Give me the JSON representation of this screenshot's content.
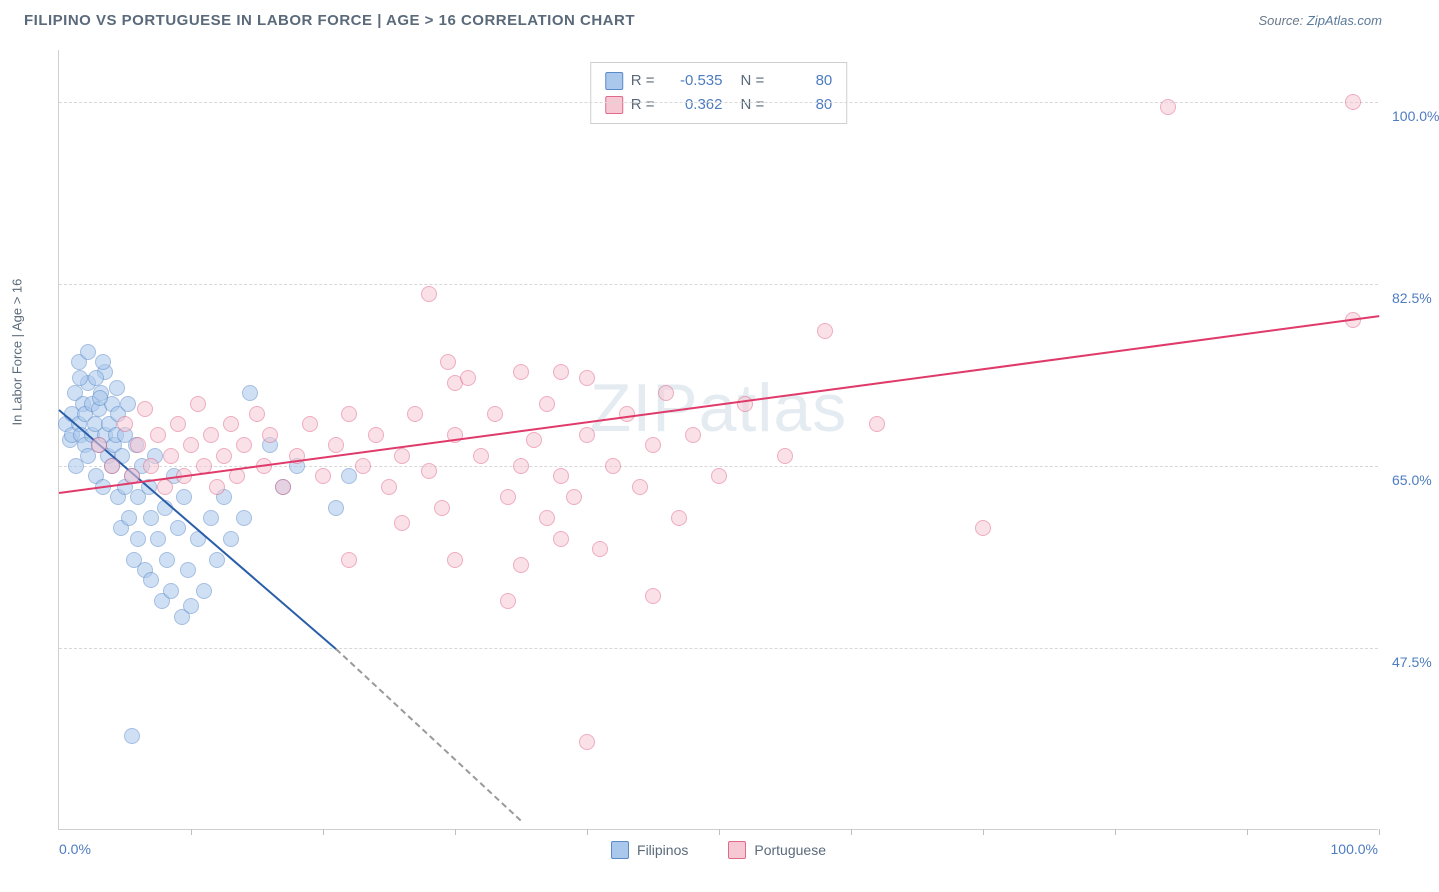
{
  "header": {
    "title": "FILIPINO VS PORTUGUESE IN LABOR FORCE | AGE > 16 CORRELATION CHART",
    "source_prefix": "Source: ",
    "source_link": "ZipAtlas.com"
  },
  "chart": {
    "type": "scatter",
    "xlim": [
      0,
      100
    ],
    "ylim": [
      30,
      105
    ],
    "x_min_label": "0.0%",
    "x_max_label": "100.0%",
    "y_ticks": [
      {
        "value": 47.5,
        "label": "47.5%"
      },
      {
        "value": 65.0,
        "label": "65.0%"
      },
      {
        "value": 82.5,
        "label": "82.5%"
      },
      {
        "value": 100.0,
        "label": "100.0%"
      }
    ],
    "x_tick_positions": [
      10,
      20,
      30,
      40,
      50,
      60,
      70,
      80,
      90,
      100
    ],
    "yaxis_title": "In Labor Force | Age > 16",
    "background_color": "#ffffff",
    "grid_color": "#d8d8d8",
    "axis_color": "#cfcfcf",
    "point_radius": 8,
    "point_opacity": 0.55,
    "watermark": "ZIPatlas",
    "series": [
      {
        "name": "Filipinos",
        "label": "Filipinos",
        "color_fill": "#a9c8ec",
        "color_stroke": "#5b8ac9",
        "r": -0.535,
        "n": 80,
        "trend": {
          "x1": 0,
          "y1": 70.5,
          "x2": 21,
          "y2": 47.5,
          "dashed_x2": 35,
          "dashed_y2": 31.0,
          "color": "#2a5fa8",
          "width": 2
        },
        "points": [
          [
            0.5,
            69
          ],
          [
            0.8,
            67.5
          ],
          [
            1,
            70
          ],
          [
            1,
            68
          ],
          [
            1.2,
            72
          ],
          [
            1.3,
            65
          ],
          [
            1.5,
            75
          ],
          [
            1.5,
            69
          ],
          [
            1.7,
            68
          ],
          [
            1.8,
            71
          ],
          [
            2,
            67
          ],
          [
            2,
            70
          ],
          [
            2.2,
            73
          ],
          [
            2.2,
            66
          ],
          [
            2.5,
            68
          ],
          [
            2.5,
            71
          ],
          [
            2.7,
            69
          ],
          [
            2.8,
            64
          ],
          [
            3,
            70.5
          ],
          [
            3,
            67
          ],
          [
            3.2,
            72
          ],
          [
            3.3,
            63
          ],
          [
            3.5,
            68
          ],
          [
            3.5,
            74
          ],
          [
            3.7,
            66
          ],
          [
            3.8,
            69
          ],
          [
            4,
            71
          ],
          [
            4,
            65
          ],
          [
            4.2,
            67
          ],
          [
            4.3,
            68
          ],
          [
            4.5,
            62
          ],
          [
            4.5,
            70
          ],
          [
            4.7,
            59
          ],
          [
            4.8,
            66
          ],
          [
            5,
            68
          ],
          [
            5,
            63
          ],
          [
            5.2,
            71
          ],
          [
            5.3,
            60
          ],
          [
            5.5,
            64
          ],
          [
            5.7,
            56
          ],
          [
            5.8,
            67
          ],
          [
            6,
            62
          ],
          [
            6,
            58
          ],
          [
            6.3,
            65
          ],
          [
            6.5,
            55
          ],
          [
            6.8,
            63
          ],
          [
            7,
            60
          ],
          [
            7,
            54
          ],
          [
            7.3,
            66
          ],
          [
            7.5,
            58
          ],
          [
            7.8,
            52
          ],
          [
            8,
            61
          ],
          [
            8.2,
            56
          ],
          [
            8.5,
            53
          ],
          [
            8.7,
            64
          ],
          [
            9,
            59
          ],
          [
            9.3,
            50.5
          ],
          [
            9.5,
            62
          ],
          [
            9.8,
            55
          ],
          [
            10,
            51.5
          ],
          [
            10.5,
            58
          ],
          [
            11,
            53
          ],
          [
            11.5,
            60
          ],
          [
            12,
            56
          ],
          [
            12.5,
            62
          ],
          [
            13,
            58
          ],
          [
            14,
            60
          ],
          [
            14.5,
            72
          ],
          [
            16,
            67
          ],
          [
            17,
            63
          ],
          [
            18,
            65
          ],
          [
            5.5,
            39
          ],
          [
            21,
            61
          ],
          [
            22,
            64
          ],
          [
            2.2,
            76
          ],
          [
            2.8,
            73.5
          ],
          [
            3.3,
            75
          ],
          [
            1.6,
            73.5
          ],
          [
            4.4,
            72.5
          ],
          [
            3.1,
            71.5
          ]
        ]
      },
      {
        "name": "Portuguese",
        "label": "Portuguese",
        "color_fill": "#f6c8d4",
        "color_stroke": "#e06a8c",
        "r": 0.362,
        "n": 80,
        "trend": {
          "x1": 0,
          "y1": 62.5,
          "x2": 100,
          "y2": 79.5,
          "color": "#e03a6a",
          "width": 2
        },
        "points": [
          [
            3,
            67
          ],
          [
            4,
            65
          ],
          [
            5,
            69
          ],
          [
            5.5,
            64
          ],
          [
            6,
            67
          ],
          [
            6.5,
            70.5
          ],
          [
            7,
            65
          ],
          [
            7.5,
            68
          ],
          [
            8,
            63
          ],
          [
            8.5,
            66
          ],
          [
            9,
            69
          ],
          [
            9.5,
            64
          ],
          [
            10,
            67
          ],
          [
            10.5,
            71
          ],
          [
            11,
            65
          ],
          [
            11.5,
            68
          ],
          [
            12,
            63
          ],
          [
            12.5,
            66
          ],
          [
            13,
            69
          ],
          [
            13.5,
            64
          ],
          [
            14,
            67
          ],
          [
            15,
            70
          ],
          [
            15.5,
            65
          ],
          [
            16,
            68
          ],
          [
            17,
            63
          ],
          [
            18,
            66
          ],
          [
            19,
            69
          ],
          [
            20,
            64
          ],
          [
            21,
            67
          ],
          [
            22,
            70
          ],
          [
            23,
            65
          ],
          [
            24,
            68
          ],
          [
            25,
            63
          ],
          [
            26,
            66
          ],
          [
            27,
            70
          ],
          [
            28,
            81.5
          ],
          [
            28,
            64.5
          ],
          [
            29,
            61
          ],
          [
            30,
            68
          ],
          [
            30,
            73
          ],
          [
            31,
            73.5
          ],
          [
            32,
            66
          ],
          [
            33,
            70
          ],
          [
            34,
            62
          ],
          [
            34,
            52
          ],
          [
            35,
            65
          ],
          [
            35,
            74
          ],
          [
            36,
            67.5
          ],
          [
            37,
            71
          ],
          [
            37,
            60
          ],
          [
            38,
            74
          ],
          [
            38,
            64
          ],
          [
            39,
            62
          ],
          [
            40,
            68
          ],
          [
            40,
            73.5
          ],
          [
            41,
            57
          ],
          [
            42,
            65
          ],
          [
            43,
            70
          ],
          [
            44,
            63
          ],
          [
            45,
            52.5
          ],
          [
            45,
            67
          ],
          [
            46,
            72
          ],
          [
            47,
            60
          ],
          [
            48,
            68
          ],
          [
            50,
            64
          ],
          [
            52,
            71
          ],
          [
            55,
            66
          ],
          [
            58,
            78
          ],
          [
            62,
            69
          ],
          [
            70,
            59
          ],
          [
            40,
            38.5
          ],
          [
            35,
            55.5
          ],
          [
            38,
            58
          ],
          [
            30,
            56
          ],
          [
            26,
            59.5
          ],
          [
            22,
            56
          ],
          [
            84,
            99.5
          ],
          [
            98,
            100
          ],
          [
            98,
            79
          ],
          [
            29.5,
            75
          ]
        ]
      }
    ],
    "legend_rn": {
      "rows": [
        {
          "swatch_fill": "#a9c8ec",
          "swatch_stroke": "#5b8ac9",
          "r_label": "R =",
          "r_value": "-0.535",
          "n_label": "N =",
          "n_value": "80"
        },
        {
          "swatch_fill": "#f6c8d4",
          "swatch_stroke": "#e06a8c",
          "r_label": "R =",
          "r_value": "0.362",
          "n_label": "N =",
          "n_value": "80"
        }
      ]
    },
    "legend_bottom": [
      {
        "swatch_fill": "#a9c8ec",
        "swatch_stroke": "#5b8ac9",
        "label": "Filipinos"
      },
      {
        "swatch_fill": "#f6c8d4",
        "swatch_stroke": "#e06a8c",
        "label": "Portuguese"
      }
    ]
  }
}
